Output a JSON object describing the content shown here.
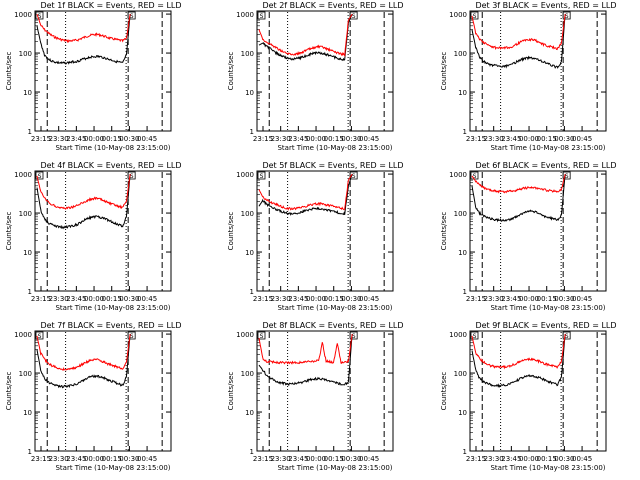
{
  "figure": {
    "ylabel": "Counts/sec",
    "xlabel": "Start Time (10-May-08 23:15:00)",
    "x_ticks": [
      "23:15",
      "23:30",
      "23:45",
      "00:00",
      "00:15",
      "00:30",
      "00:45"
    ],
    "y_ticks": [
      "1",
      "10",
      "100",
      "1000"
    ],
    "colors": {
      "events": "#000000",
      "lld": "#ff0000",
      "axes": "#000000",
      "background": "#ffffff"
    }
  },
  "chart_data": [
    {
      "type": "line",
      "title": "Det 1f BLACK = Events, RED = LLD",
      "ylim": [
        1,
        1200
      ],
      "log_y": true,
      "markers": {
        "saa_start": "S",
        "saa_end": "S"
      },
      "series": [
        {
          "name": "Events",
          "key": "events",
          "values": [
            500,
            180,
            90,
            70,
            62,
            58,
            56,
            55,
            56,
            58,
            60,
            62,
            68,
            72,
            78,
            80,
            82,
            80,
            76,
            70,
            66,
            62,
            58,
            55,
            90,
            1000
          ]
        },
        {
          "name": "LLD",
          "key": "lld",
          "values": [
            1000,
            520,
            400,
            330,
            280,
            250,
            230,
            215,
            205,
            205,
            210,
            218,
            240,
            260,
            280,
            295,
            300,
            290,
            270,
            250,
            235,
            225,
            215,
            205,
            240,
            1000
          ]
        }
      ]
    },
    {
      "type": "line",
      "title": "Det 2f BLACK = Events, RED = LLD",
      "ylim": [
        1,
        1200
      ],
      "log_y": true,
      "markers": {
        "saa_start": "S",
        "saa_end": "S"
      },
      "series": [
        {
          "name": "Events",
          "key": "events",
          "values": [
            160,
            180,
            150,
            130,
            110,
            95,
            85,
            78,
            72,
            70,
            72,
            75,
            80,
            88,
            95,
            100,
            102,
            98,
            92,
            86,
            80,
            74,
            70,
            66,
            600,
            1000
          ]
        },
        {
          "name": "LLD",
          "key": "lld",
          "values": [
            400,
            230,
            190,
            170,
            150,
            130,
            115,
            102,
            95,
            92,
            95,
            100,
            110,
            120,
            130,
            140,
            145,
            140,
            130,
            120,
            110,
            102,
            96,
            90,
            700,
            1000
          ]
        }
      ]
    },
    {
      "type": "line",
      "title": "Det 3f BLACK = Events, RED = LLD",
      "ylim": [
        1,
        1200
      ],
      "log_y": true,
      "markers": {
        "saa_start": "S",
        "saa_end": "S"
      },
      "series": [
        {
          "name": "Events",
          "key": "events",
          "values": [
            400,
            140,
            80,
            62,
            55,
            50,
            48,
            46,
            45,
            46,
            48,
            52,
            60,
            66,
            72,
            75,
            76,
            72,
            66,
            60,
            55,
            50,
            46,
            42,
            60,
            1000
          ]
        },
        {
          "name": "LLD",
          "key": "lld",
          "values": [
            900,
            330,
            230,
            190,
            165,
            150,
            140,
            135,
            132,
            135,
            140,
            150,
            170,
            190,
            210,
            220,
            222,
            210,
            190,
            170,
            155,
            145,
            138,
            130,
            180,
            1000
          ]
        }
      ]
    },
    {
      "type": "line",
      "title": "Det 4f BLACK = Events, RED = LLD",
      "ylim": [
        1,
        1200
      ],
      "log_y": true,
      "markers": {
        "saa_start": "S",
        "saa_end": "S"
      },
      "series": [
        {
          "name": "Events",
          "key": "events",
          "values": [
            450,
            120,
            70,
            56,
            50,
            46,
            44,
            43,
            44,
            46,
            48,
            52,
            60,
            68,
            75,
            80,
            82,
            78,
            72,
            66,
            60,
            55,
            50,
            46,
            80,
            1000
          ]
        },
        {
          "name": "LLD",
          "key": "lld",
          "values": [
            900,
            350,
            240,
            190,
            165,
            150,
            140,
            135,
            135,
            140,
            148,
            160,
            180,
            200,
            220,
            235,
            238,
            225,
            205,
            185,
            170,
            158,
            148,
            140,
            200,
            1000
          ]
        }
      ]
    },
    {
      "type": "line",
      "title": "Det 5f BLACK = Events, RED = LLD",
      "ylim": [
        1,
        1200
      ],
      "log_y": true,
      "markers": {
        "saa_start": "S",
        "saa_end": "S"
      },
      "series": [
        {
          "name": "Events",
          "key": "events",
          "values": [
            150,
            210,
            170,
            150,
            135,
            120,
            110,
            102,
            98,
            96,
            98,
            102,
            110,
            118,
            125,
            130,
            132,
            128,
            122,
            115,
            110,
            104,
            100,
            95,
            500,
            1000
          ]
        },
        {
          "name": "LLD",
          "key": "lld",
          "values": [
            400,
            260,
            220,
            195,
            175,
            160,
            145,
            135,
            130,
            128,
            130,
            135,
            145,
            155,
            165,
            172,
            175,
            170,
            162,
            155,
            148,
            140,
            135,
            128,
            700,
            1000
          ]
        }
      ]
    },
    {
      "type": "line",
      "title": "Det 6f BLACK = Events, RED = LLD",
      "ylim": [
        1,
        1200
      ],
      "log_y": true,
      "markers": {
        "saa_start": "S",
        "saa_end": "S"
      },
      "series": [
        {
          "name": "Events",
          "key": "events",
          "values": [
            500,
            140,
            100,
            85,
            78,
            72,
            68,
            66,
            65,
            66,
            68,
            72,
            82,
            92,
            102,
            110,
            112,
            106,
            96,
            86,
            80,
            75,
            70,
            66,
            90,
            1000
          ]
        },
        {
          "name": "LLD",
          "key": "lld",
          "values": [
            900,
            650,
            520,
            460,
            420,
            390,
            370,
            360,
            355,
            355,
            360,
            370,
            390,
            410,
            430,
            445,
            450,
            440,
            420,
            400,
            385,
            375,
            365,
            355,
            400,
            1000
          ]
        }
      ]
    },
    {
      "type": "line",
      "title": "Det 7f BLACK = Events, RED = LLD",
      "ylim": [
        1,
        1200
      ],
      "log_y": true,
      "markers": {
        "saa_start": "S",
        "saa_end": "S"
      },
      "series": [
        {
          "name": "Events",
          "key": "events",
          "values": [
            400,
            120,
            72,
            58,
            52,
            48,
            46,
            45,
            46,
            48,
            50,
            54,
            62,
            70,
            78,
            82,
            84,
            80,
            74,
            68,
            62,
            57,
            52,
            48,
            80,
            1000
          ]
        },
        {
          "name": "LLD",
          "key": "lld",
          "values": [
            900,
            320,
            230,
            180,
            155,
            140,
            130,
            125,
            124,
            128,
            135,
            145,
            165,
            185,
            205,
            218,
            220,
            208,
            190,
            172,
            158,
            148,
            140,
            132,
            190,
            1000
          ]
        }
      ]
    },
    {
      "type": "line",
      "title": "Det 8f BLACK = Events, RED = LLD",
      "ylim": [
        1,
        1200
      ],
      "log_y": true,
      "markers": {
        "saa_start": "S",
        "saa_end": "S"
      },
      "series": [
        {
          "name": "Events",
          "key": "events",
          "values": [
            160,
            120,
            90,
            75,
            66,
            60,
            56,
            54,
            52,
            52,
            54,
            56,
            60,
            64,
            68,
            70,
            72,
            70,
            66,
            62,
            58,
            55,
            52,
            50,
            60,
            1000
          ]
        },
        {
          "name": "LLD",
          "key": "lld",
          "values": [
            800,
            240,
            200,
            195,
            190,
            188,
            186,
            185,
            184,
            185,
            186,
            188,
            192,
            196,
            200,
            204,
            206,
            600,
            200,
            196,
            190,
            600,
            188,
            184,
            200,
            1000
          ]
        }
      ]
    },
    {
      "type": "line",
      "title": "Det 9f BLACK = Events, RED = LLD",
      "ylim": [
        1,
        1200
      ],
      "log_y": true,
      "markers": {
        "saa_start": "S",
        "saa_end": "S"
      },
      "series": [
        {
          "name": "Events",
          "key": "events",
          "values": [
            380,
            120,
            74,
            60,
            54,
            50,
            48,
            47,
            47,
            49,
            52,
            56,
            64,
            72,
            80,
            84,
            86,
            82,
            76,
            70,
            64,
            58,
            54,
            50,
            80,
            1000
          ]
        },
        {
          "name": "LLD",
          "key": "lld",
          "values": [
            900,
            330,
            240,
            195,
            170,
            155,
            145,
            140,
            140,
            145,
            152,
            162,
            180,
            198,
            215,
            228,
            230,
            218,
            200,
            182,
            168,
            158,
            150,
            142,
            200,
            1000
          ]
        }
      ]
    }
  ]
}
